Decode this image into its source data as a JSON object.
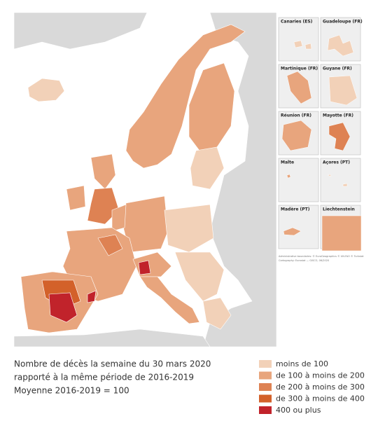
{
  "map": {
    "insets": [
      "Canaries (ES)",
      "Guadeloupe (FR)",
      "Martinique (FR)",
      "Guyane (FR)",
      "Réunion (FR)",
      "Mayotte (FR)",
      "Malte",
      "Açores (PT)",
      "Madère (PT)",
      "Liechtenstein"
    ],
    "credits": [
      "Administrative boundaries: © EuroGeographics © UN-FAO © Turkstat",
      "Cartography: Eurostat — GISCO, 06/2020"
    ]
  },
  "caption": [
    "Nombre de décès la semaine du 30 mars 2020",
    "rapporté à la même période de 2016-2019",
    "Moyenne 2016-2019 = 100"
  ],
  "legend": [
    {
      "label": "moins de 100",
      "color": "#f2d1b8"
    },
    {
      "label": "de 100 à moins de 200",
      "color": "#e8a57d"
    },
    {
      "label": "de 200 à moins de 300",
      "color": "#de8253"
    },
    {
      "label": "de 300 à moins de 400",
      "color": "#d3612a"
    },
    {
      "label": "400 ou plus",
      "color": "#c1232b"
    }
  ]
}
